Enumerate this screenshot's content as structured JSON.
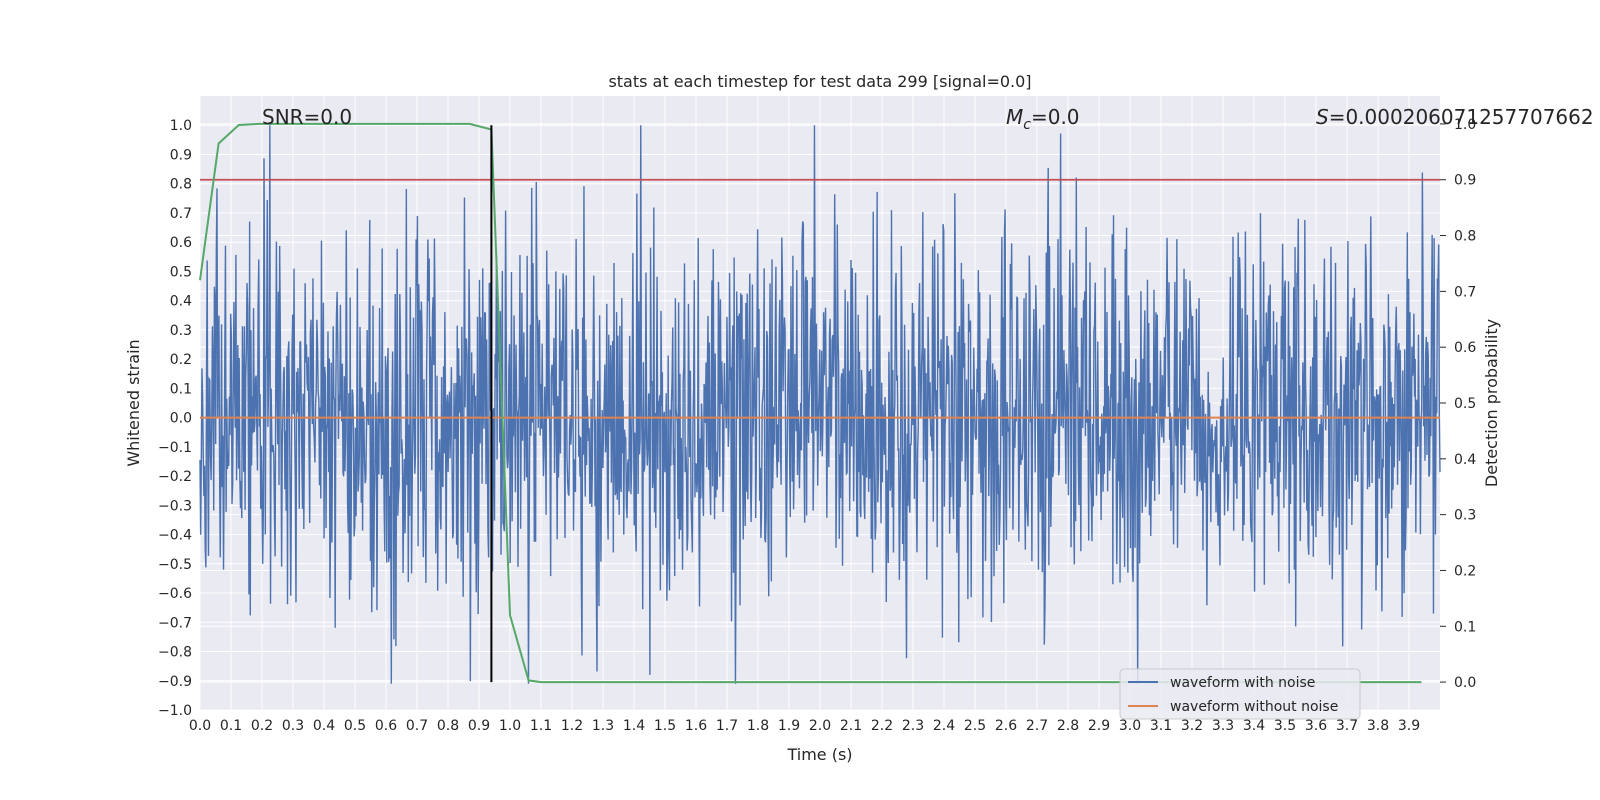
{
  "chart_data": {
    "type": "line",
    "title": "stats at each timestep for test data 299 [signal=0.0]",
    "xlabel": "Time (s)",
    "ylabel": "Whitened strain",
    "y2label": "Detection probability",
    "xlim": [
      0.0,
      4.0
    ],
    "ylim": [
      -1.0,
      1.1
    ],
    "y2lim": [
      -0.05,
      1.05
    ],
    "x_ticks": [
      "0.0",
      "0.1",
      "0.2",
      "0.3",
      "0.4",
      "0.5",
      "0.6",
      "0.7",
      "0.8",
      "0.9",
      "1.0",
      "1.1",
      "1.2",
      "1.3",
      "1.4",
      "1.5",
      "1.6",
      "1.7",
      "1.8",
      "1.9",
      "2.0",
      "2.1",
      "2.2",
      "2.3",
      "2.4",
      "2.5",
      "2.6",
      "2.7",
      "2.8",
      "2.9",
      "3.0",
      "3.1",
      "3.2",
      "3.3",
      "3.4",
      "3.5",
      "3.6",
      "3.7",
      "3.8",
      "3.9"
    ],
    "y_ticks": [
      "-1.0",
      "-0.9",
      "-0.8",
      "-0.7",
      "-0.6",
      "-0.5",
      "-0.4",
      "-0.3",
      "-0.2",
      "-0.1",
      "0.0",
      "0.1",
      "0.2",
      "0.3",
      "0.4",
      "0.5",
      "0.6",
      "0.7",
      "0.8",
      "0.9",
      "1.0"
    ],
    "y2_ticks": [
      "0.0",
      "0.1",
      "0.2",
      "0.3",
      "0.4",
      "0.5",
      "0.6",
      "0.7",
      "0.8",
      "0.9",
      "1.0"
    ],
    "annotations": {
      "snr": "SNR=0.0",
      "mc_symbol": "M",
      "mc_sub": "c",
      "mc_value": "=0.0",
      "s_symbol": "S",
      "s_value": "=0.00020607125770766​2"
    },
    "series": [
      {
        "name": "waveform with noise",
        "color": "#4c72b0",
        "description": "noise waveform sampled over 0 to 4 s",
        "typical_amplitude": 0.3,
        "range": [
          -0.91,
          1.0
        ]
      },
      {
        "name": "waveform without noise",
        "color": "#dd8452",
        "values_constant": 0.0
      },
      {
        "name": "detection probability",
        "color": "#55a868",
        "x": [
          0.0,
          0.06,
          0.125,
          0.19,
          0.26,
          0.87,
          0.94,
          1.0,
          1.06,
          1.1,
          3.94
        ],
        "values": [
          0.72,
          0.965,
          0.998,
          1.0,
          1.0,
          1.0,
          0.99,
          0.12,
          0.003,
          0.0,
          0.0
        ]
      },
      {
        "name": "threshold",
        "color": "#c44e52",
        "value_y2": 0.9
      },
      {
        "name": "peak marker",
        "color": "#000000",
        "x": 0.94
      }
    ],
    "legend": {
      "location": "lower-right",
      "entries": [
        "waveform with noise",
        "waveform without noise"
      ]
    }
  }
}
